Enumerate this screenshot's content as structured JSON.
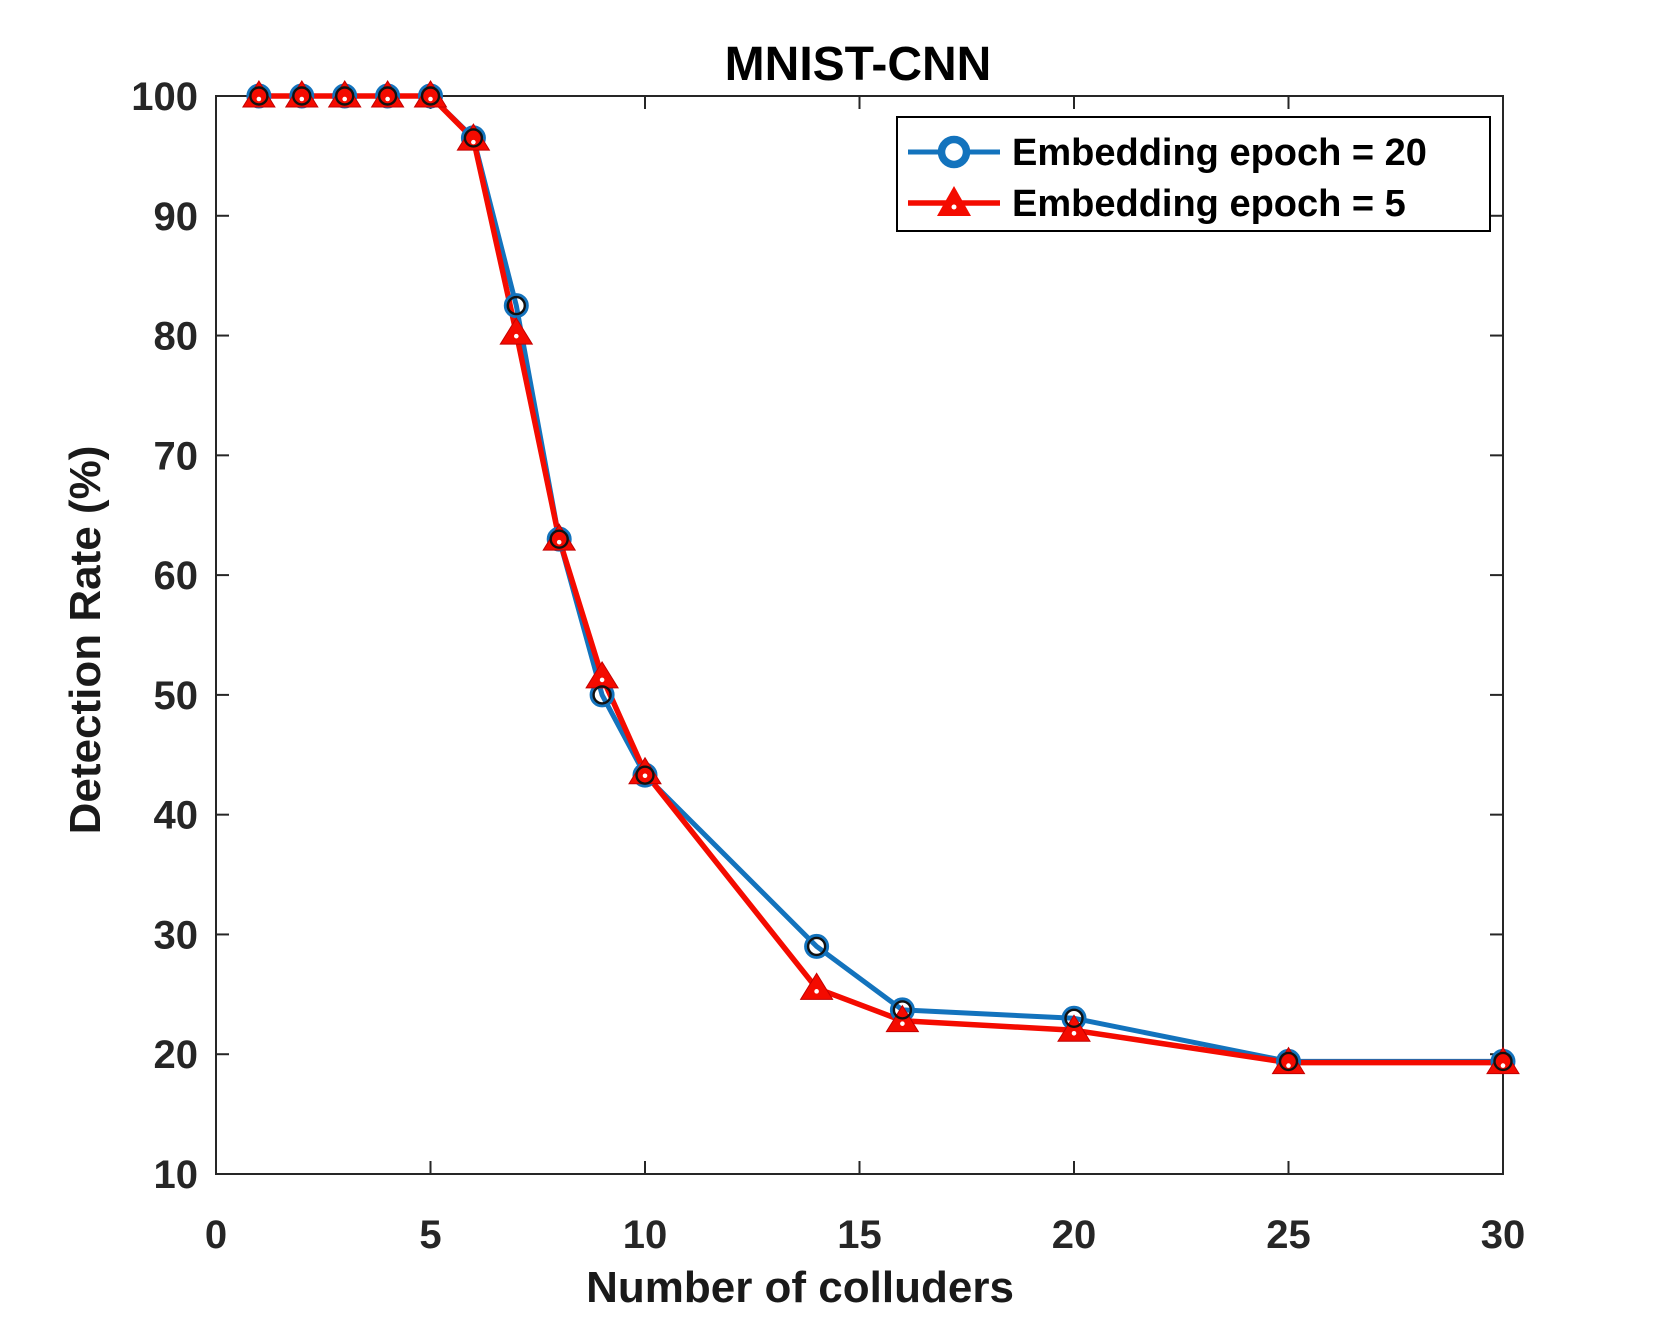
{
  "figure": {
    "background": "#ffffff",
    "axis_box_color": "#262626",
    "tick_label_color": "#262626"
  },
  "chart_data": {
    "type": "line",
    "title": "MNIST-CNN",
    "xlabel": "Number of colluders",
    "ylabel": "Detection Rate (%)",
    "xlim": [
      0,
      30
    ],
    "ylim": [
      10,
      100
    ],
    "xticks": [
      0,
      5,
      10,
      15,
      20,
      25,
      30
    ],
    "yticks": [
      10,
      20,
      30,
      40,
      50,
      60,
      70,
      80,
      90,
      100
    ],
    "grid": false,
    "legend_position": "top-right",
    "axis_color": "#262626",
    "x": [
      1,
      2,
      3,
      4,
      5,
      6,
      7,
      8,
      9,
      10,
      14,
      16,
      20,
      25,
      30
    ],
    "series": [
      {
        "name": "Embedding epoch = 20",
        "color": "#1373bd",
        "marker": "circle",
        "marker_edge": "#111111",
        "values": [
          100,
          100,
          100,
          100,
          100,
          96.5,
          82.5,
          63,
          50,
          43.3,
          29,
          23.7,
          23,
          19.4,
          19.4
        ]
      },
      {
        "name": "Embedding epoch = 5",
        "color": "#f40b00",
        "marker": "triangle",
        "marker_edge": "#c40000",
        "values": [
          100,
          100,
          100,
          100,
          100,
          96.4,
          80.2,
          63,
          51.5,
          43.5,
          25.5,
          22.8,
          22,
          19.3,
          19.3
        ]
      }
    ]
  }
}
